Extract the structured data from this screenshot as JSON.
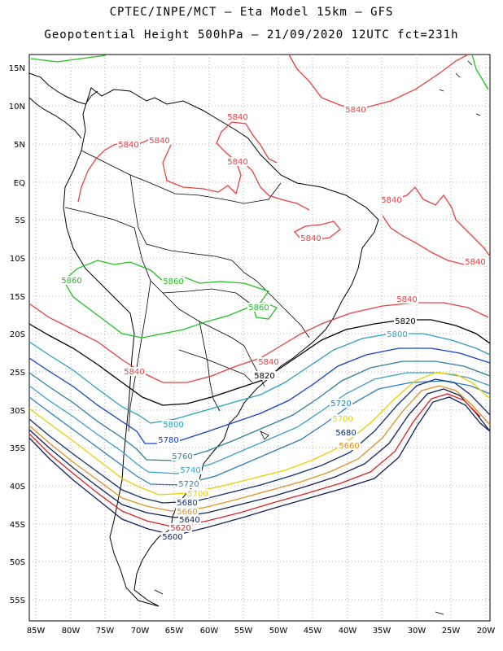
{
  "header": {
    "title_line1": "CPTEC/INPE/MCT –  Eta Model 15km – GFS",
    "title_line2": "Geopotential Height 500hPa – 21/09/2020 12UTC fct=231h"
  },
  "map": {
    "lat_labels": [
      "15N",
      "10N",
      "5N",
      "EQ",
      "5S",
      "10S",
      "15S",
      "20S",
      "25S",
      "30S",
      "35S",
      "40S",
      "45S",
      "50S",
      "55S"
    ],
    "lon_labels": [
      "85W",
      "80W",
      "75W",
      "70W",
      "65W",
      "60W",
      "55W",
      "50W",
      "45W",
      "40W",
      "35W",
      "30W",
      "25W",
      "20W"
    ],
    "contour_labels": [
      {
        "text": "5840",
        "color": "#e84040"
      },
      {
        "text": "5840",
        "color": "#e84040"
      },
      {
        "text": "5840",
        "color": "#e84040"
      },
      {
        "text": "5840",
        "color": "#e84040"
      },
      {
        "text": "5840",
        "color": "#e84040"
      },
      {
        "text": "5840",
        "color": "#e84040"
      },
      {
        "text": "5840",
        "color": "#e84040"
      },
      {
        "text": "5840",
        "color": "#e84040"
      },
      {
        "text": "5840",
        "color": "#e84040"
      },
      {
        "text": "5840",
        "color": "#e84040"
      },
      {
        "text": "5840",
        "color": "#e84040"
      },
      {
        "text": "5860",
        "color": "#22c022"
      },
      {
        "text": "5860",
        "color": "#22c022"
      },
      {
        "text": "5860",
        "color": "#22c022"
      },
      {
        "text": "5820",
        "color": "#000000"
      },
      {
        "text": "5820",
        "color": "#000000"
      },
      {
        "text": "5800",
        "color": "#2aa0c0"
      },
      {
        "text": "5800",
        "color": "#2aa0c0"
      },
      {
        "text": "5780",
        "color": "#1040d0"
      },
      {
        "text": "5760",
        "color": "#2a80a0"
      },
      {
        "text": "5740",
        "color": "#3aa0d0"
      },
      {
        "text": "5720",
        "color": "#2a80c0"
      },
      {
        "text": "5720",
        "color": "#2a80c0"
      },
      {
        "text": "5700",
        "color": "#e8d000"
      },
      {
        "text": "5700",
        "color": "#e8d000"
      },
      {
        "text": "5680",
        "color": "#103070"
      },
      {
        "text": "5680",
        "color": "#103070"
      },
      {
        "text": "5660",
        "color": "#e09020"
      },
      {
        "text": "5660",
        "color": "#e09020"
      },
      {
        "text": "5640",
        "color": "#102060"
      },
      {
        "text": "5620",
        "color": "#e02020"
      },
      {
        "text": "5600",
        "color": "#102060"
      }
    ]
  },
  "colors": {
    "c5840": "#e84040",
    "c5860": "#22c022",
    "c5820": "#000000",
    "c5800": "#2aa0c0",
    "c5780": "#1040d0",
    "c5760": "#2a80a0",
    "c5740": "#3aa0d0",
    "c5720": "#2a80c0",
    "c5700": "#e8d000",
    "c5680": "#103070",
    "c5660": "#e09020",
    "c5640": "#102060",
    "c5620": "#e02020",
    "c5600": "#102060"
  }
}
